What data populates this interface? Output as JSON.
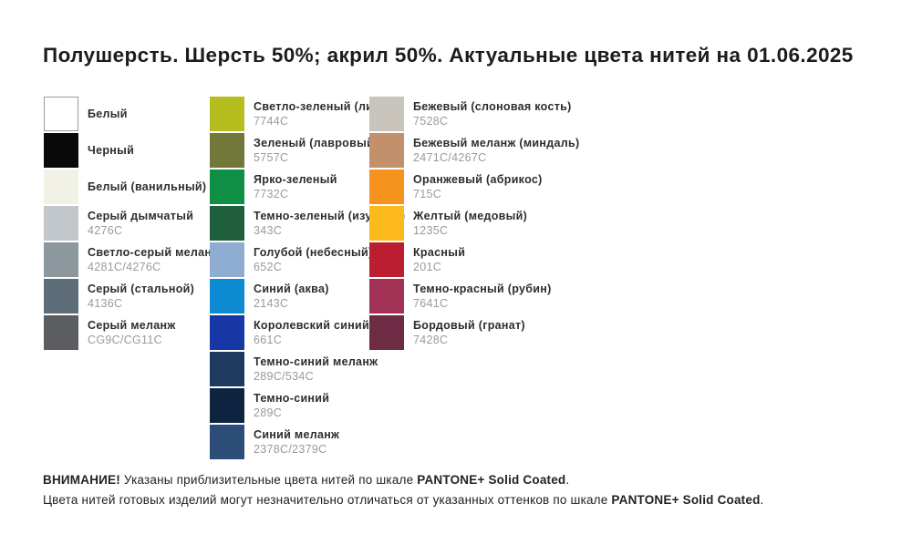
{
  "title": "Полушерсть. Шерсть 50%; акрил 50%. Актуальные цвета нитей на 01.06.2025",
  "columns": [
    {
      "items": [
        {
          "name": "Белый",
          "code": "",
          "color": "#ffffff",
          "border": true
        },
        {
          "name": "Черный",
          "code": "",
          "color": "#0a0a0a"
        },
        {
          "name": "Белый (ванильный)",
          "code": "",
          "color": "#f2f1e6"
        },
        {
          "name": "Серый дымчатый",
          "code": "4276C",
          "color": "#c2c7cb"
        },
        {
          "name": "Светло-серый меланж",
          "code": "4281C/4276C",
          "color": "#8d979e"
        },
        {
          "name": "Серый (стальной)",
          "code": "4136C",
          "color": "#5d6d79"
        },
        {
          "name": "Серый меланж",
          "code": "CG9C/CG11C",
          "color": "#5b5d60"
        }
      ]
    },
    {
      "items": [
        {
          "name": "Светло-зеленый (липа)",
          "code": "7744C",
          "color": "#b5bd1f"
        },
        {
          "name": "Зеленый (лавровый)",
          "code": "5757C",
          "color": "#717839"
        },
        {
          "name": "Ярко-зеленый",
          "code": "7732C",
          "color": "#0f8f45"
        },
        {
          "name": "Темно-зеленый (изумруд)",
          "code": "343C",
          "color": "#1f5f3b"
        },
        {
          "name": "Голубой (небесный)",
          "code": "652C",
          "color": "#8fadd2"
        },
        {
          "name": "Синий (аква)",
          "code": "2143C",
          "color": "#0c8ad2"
        },
        {
          "name": "Королевский синий",
          "code": "661C",
          "color": "#1737a5"
        },
        {
          "name": "Темно-синий меланж",
          "code": "289C/534C",
          "color": "#1e3a5f"
        },
        {
          "name": "Темно-синий",
          "code": "289C",
          "color": "#0e2340"
        },
        {
          "name": "Синий меланж",
          "code": "2378C/2379C",
          "color": "#2c4d77"
        }
      ]
    },
    {
      "items": [
        {
          "name": "Бежевый (слоновая кость)",
          "code": "7528C",
          "color": "#c9c5bd"
        },
        {
          "name": "Бежевый меланж (миндаль)",
          "code": "2471C/4267C",
          "color": "#c2906a"
        },
        {
          "name": "Оранжевый (абрикос)",
          "code": "715C",
          "color": "#f6921e"
        },
        {
          "name": "Желтый (медовый)",
          "code": "1235C",
          "color": "#fbb91c"
        },
        {
          "name": "Красный",
          "code": "201C",
          "color": "#bb1e31"
        },
        {
          "name": "Темно-красный (рубин)",
          "code": "7641C",
          "color": "#a23156"
        },
        {
          "name": "Бордовый (гранат)",
          "code": "7428C",
          "color": "#6e2b44"
        }
      ]
    }
  ],
  "footer": {
    "line1": [
      {
        "text": "ВНИМАНИЕ!",
        "bold": true
      },
      {
        "text": " Указаны приблизительные цвета нитей по шкале ",
        "bold": false
      },
      {
        "text": "PANTONE+ Solid Coated",
        "bold": true
      },
      {
        "text": ".",
        "bold": false
      }
    ],
    "line2": [
      {
        "text": "Цвета нитей готовых изделий могут незначительно отличаться от указанных оттенков по шкале ",
        "bold": false
      },
      {
        "text": "PANTONE+ Solid Coated",
        "bold": true
      },
      {
        "text": ".",
        "bold": false
      }
    ]
  }
}
